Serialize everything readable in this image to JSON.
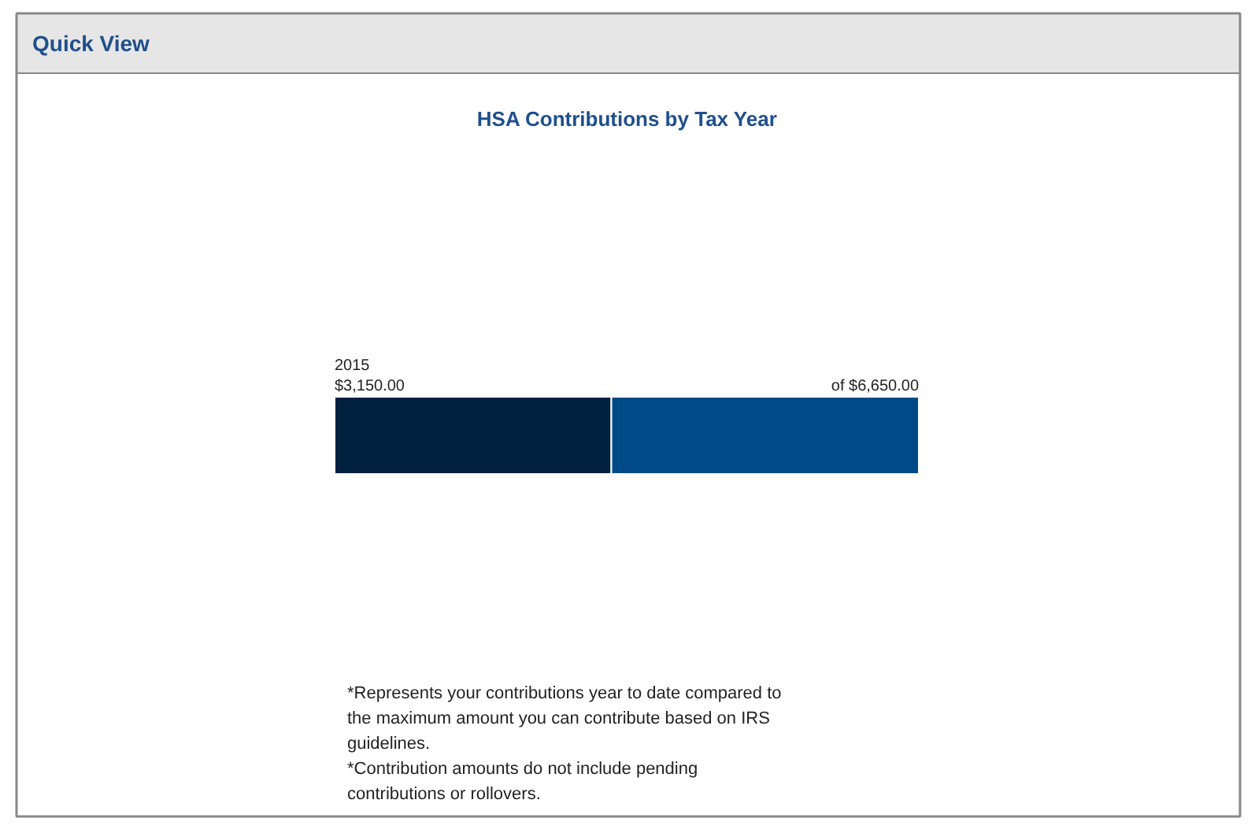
{
  "chart_data": {
    "type": "bar",
    "orientation": "horizontal",
    "stacked": true,
    "title": "HSA Contributions by Tax Year",
    "annotations": [
      "Quick View",
      "*Represents your contributions year to date compared to the maximum amount you can contribute based on IRS guidelines.",
      "*Contribution amounts do not include pending contributions or rollovers."
    ],
    "categories": [
      "2015"
    ],
    "series": [
      {
        "color": "#00213f",
        "values": [
          3150
        ],
        "value_labels": [
          "$3,150.00"
        ]
      },
      {
        "color": "#004a88",
        "values": [
          3500
        ]
      }
    ],
    "totals": [
      "of $6,650.00"
    ],
    "xlim": [
      0,
      6650
    ]
  }
}
